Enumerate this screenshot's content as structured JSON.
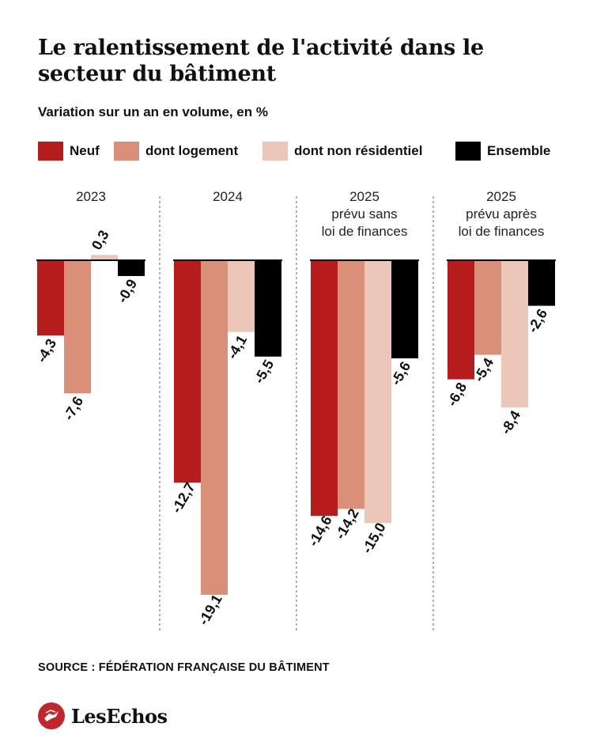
{
  "title": "Le ralentissement de l'activité dans le secteur du bâtiment",
  "subtitle": "Variation sur un an en volume, en %",
  "source": "SOURCE : FÉDÉRATION FRANÇAISE DU BÂTIMENT",
  "logo_text": "LesEchos",
  "colors": {
    "neuf": "#b71c1c",
    "logement": "#d98f78",
    "non_residentiel": "#ecc7b8",
    "ensemble": "#000000",
    "brand": "#c0272d"
  },
  "chart_data": {
    "type": "bar",
    "title": "Le ralentissement de l'activité dans le secteur du bâtiment",
    "subtitle": "Variation sur un an en volume, en %",
    "ylim": [
      -19.1,
      0.3
    ],
    "legend_position": "top",
    "grid": false,
    "categories": [
      {
        "lines": [
          "2023"
        ]
      },
      {
        "lines": [
          "2024"
        ]
      },
      {
        "lines": [
          "2025",
          "prévu sans",
          "loi de finances"
        ]
      },
      {
        "lines": [
          "2025",
          "prévu après",
          "loi de finances"
        ]
      }
    ],
    "series": [
      {
        "name": "Neuf",
        "color": "#b71c1c",
        "values": [
          -4.3,
          -12.7,
          -14.6,
          -6.8
        ],
        "labels": [
          "-4,3",
          "-12,7",
          "-14,6",
          "-6,8"
        ]
      },
      {
        "name": "dont logement",
        "color": "#d98f78",
        "values": [
          -7.6,
          -19.1,
          -14.2,
          -5.4
        ],
        "labels": [
          "-7,6",
          "-19,1",
          "-14,2",
          "-5,4"
        ]
      },
      {
        "name": "dont non résidentiel",
        "color": "#ecc7b8",
        "values": [
          0.3,
          -4.1,
          -15.0,
          -8.4
        ],
        "labels": [
          "0,3",
          "-4,1",
          "-15,0",
          "-8,4"
        ]
      },
      {
        "name": "Ensemble",
        "color": "#000000",
        "values": [
          -0.9,
          -5.5,
          -5.6,
          -2.6
        ],
        "labels": [
          "-0,9",
          "-5,5",
          "-5,6",
          "-2,6"
        ]
      }
    ]
  }
}
